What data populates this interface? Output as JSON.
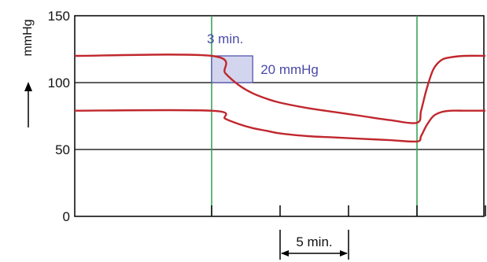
{
  "chart_data": {
    "type": "line",
    "ylabel": "mmHg",
    "ylim": [
      0,
      150
    ],
    "yticks": [
      0,
      50,
      100,
      150
    ],
    "xlim": [
      0,
      30
    ],
    "xticks": [
      10,
      15,
      20,
      25,
      30
    ],
    "grid": {
      "horizontal": [
        50,
        100
      ],
      "y_only": true
    },
    "x_unit": "min",
    "series": [
      {
        "x": [
          0,
          10,
          11,
          12,
          13,
          14,
          15,
          17,
          19,
          21,
          23,
          25,
          25.3,
          25.7,
          26.2,
          26.8,
          27.5,
          28.5,
          30
        ],
        "values": [
          120,
          120,
          107,
          98,
          92,
          88,
          85,
          81,
          78,
          75,
          72,
          70,
          79,
          95,
          110,
          117,
          119,
          120,
          120
        ],
        "color": "#c0272d"
      },
      {
        "x": [
          0,
          10,
          11,
          12,
          13,
          14,
          15,
          17,
          19,
          21,
          23,
          25,
          25.3,
          25.7,
          26.2,
          26.8,
          27.5,
          28.5,
          30
        ],
        "values": [
          79,
          79,
          73,
          69,
          66,
          64,
          62,
          60,
          59,
          58,
          57,
          56,
          60,
          68,
          75,
          78,
          79,
          79,
          79
        ],
        "color": "#c0272d"
      }
    ],
    "vertical_markers": [
      {
        "x": 10,
        "color": "#2e9e4f"
      },
      {
        "x": 25,
        "color": "#2e9e4f"
      }
    ],
    "annotations": {
      "slope_box": {
        "x0": 10,
        "x1": 13,
        "y0": 100,
        "y1": 120,
        "color": "#4a4aa8",
        "fill": "#d3d5ee"
      },
      "time_label": "3 min.",
      "pressure_label": "20 mmHg",
      "scale_bar": {
        "x0": 15,
        "x1": 20,
        "label": "5 min."
      }
    }
  }
}
